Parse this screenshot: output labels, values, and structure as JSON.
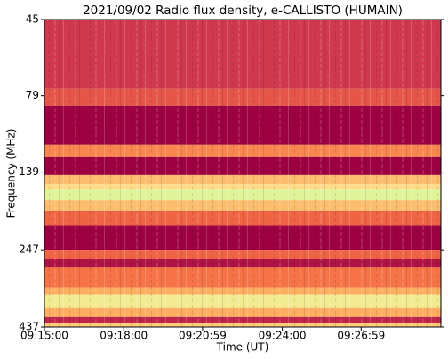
{
  "chart_data": {
    "type": "spectrogram",
    "title": "2021/09/02  Radio flux density, e-CALLISTO (HUMAIN)",
    "x_label": "Time (UT)",
    "y_label": "Frequency (MHz)",
    "xlim": [
      33300,
      34200
    ],
    "xticks": [
      {
        "value": 33300,
        "label": "09:15:00"
      },
      {
        "value": 33480,
        "label": "09:18:00"
      },
      {
        "value": 33659,
        "label": "09:20:59"
      },
      {
        "value": 33840,
        "label": "09:24:00"
      },
      {
        "value": 34019,
        "label": "09:26:59"
      }
    ],
    "ylim": [
      45,
      437
    ],
    "yticks": [
      45,
      79,
      139,
      247,
      437
    ],
    "y_log": true,
    "y_inverted": true,
    "colormap": [
      "#9e0142",
      "#d53e4f",
      "#f46d43",
      "#fdae61",
      "#fee08b",
      "#e6f598",
      "#abdda4"
    ],
    "bands": [
      {
        "from": 45,
        "to": 75,
        "level": 0.15
      },
      {
        "from": 75,
        "to": 85,
        "level": 0.25
      },
      {
        "from": 85,
        "to": 113.5,
        "level": 0
      },
      {
        "from": 113.5,
        "to": 124.5,
        "level": 0.4
      },
      {
        "from": 124.5,
        "to": 142,
        "level": 0
      },
      {
        "from": 142,
        "to": 152,
        "level": 0.55
      },
      {
        "from": 152,
        "to": 158,
        "level": 0.65
      },
      {
        "from": 158,
        "to": 171,
        "level": 0.85
      },
      {
        "from": 171,
        "to": 185,
        "level": 0.55
      },
      {
        "from": 185,
        "to": 206,
        "level": 0.3
      },
      {
        "from": 206,
        "to": 247,
        "level": 0
      },
      {
        "from": 247,
        "to": 264,
        "level": 0.3
      },
      {
        "from": 264,
        "to": 282,
        "level": 0.05
      },
      {
        "from": 282,
        "to": 326.5,
        "level": 0.35
      },
      {
        "from": 326.5,
        "to": 344,
        "level": 0.5
      },
      {
        "from": 344,
        "to": 380,
        "level": 0.75
      },
      {
        "from": 380,
        "to": 406,
        "level": 0.5
      },
      {
        "from": 406,
        "to": 425,
        "level": 0.1
      },
      {
        "from": 425,
        "to": 437,
        "level": 0.6
      }
    ]
  }
}
